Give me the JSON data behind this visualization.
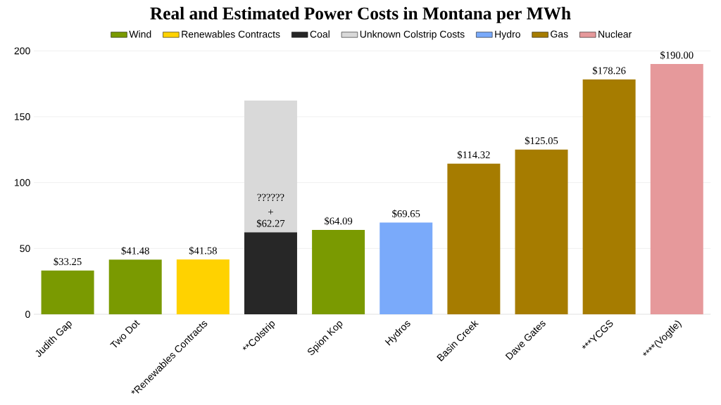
{
  "chart_data": {
    "type": "bar",
    "stacked": true,
    "title": "Real and Estimated Power Costs in Montana per MWh",
    "categories": [
      "Judith Gap",
      "Two Dot",
      "*Renewables Contracts",
      "**Colstrip",
      "Spion Kop",
      "Hydros",
      "Basin Creek",
      "Dave Gates",
      "***YCGS",
      "****(Vogtle)"
    ],
    "series": [
      {
        "name": "Wind",
        "color": "#7a9a01",
        "values": [
          33.25,
          41.48,
          null,
          null,
          64.09,
          null,
          null,
          null,
          null,
          null
        ],
        "value_labels": [
          "$33.25",
          "$41.48",
          null,
          null,
          "$64.09",
          null,
          null,
          null,
          null,
          null
        ]
      },
      {
        "name": "Renewables Contracts",
        "color": "#ffd200",
        "values": [
          null,
          null,
          41.58,
          null,
          null,
          null,
          null,
          null,
          null,
          null
        ],
        "value_labels": [
          null,
          null,
          "$41.58",
          null,
          null,
          null,
          null,
          null,
          null,
          null
        ]
      },
      {
        "name": "Coal",
        "color": "#272727",
        "values": [
          null,
          null,
          null,
          62.27,
          null,
          null,
          null,
          null,
          null,
          null
        ],
        "value_labels": [
          null,
          null,
          null,
          "$62.27",
          null,
          null,
          null,
          null,
          null,
          null
        ]
      },
      {
        "name": "Unknown Colstrip Costs",
        "color": "#d9d9d9",
        "values": [
          null,
          null,
          null,
          100,
          null,
          null,
          null,
          null,
          null,
          null
        ]
      },
      {
        "name": "Hydro",
        "color": "#7aaafa",
        "values": [
          null,
          null,
          null,
          null,
          null,
          69.65,
          null,
          null,
          null,
          null
        ],
        "value_labels": [
          null,
          null,
          null,
          null,
          null,
          "$69.65",
          null,
          null,
          null,
          null
        ]
      },
      {
        "name": "Gas",
        "color": "#a67c00",
        "values": [
          null,
          null,
          null,
          null,
          null,
          null,
          114.32,
          125.05,
          178.26,
          null
        ],
        "value_labels": [
          null,
          null,
          null,
          null,
          null,
          null,
          "$114.32",
          "$125.05",
          "$178.26",
          null
        ]
      },
      {
        "name": "Nuclear",
        "color": "#e6999b",
        "values": [
          null,
          null,
          null,
          null,
          null,
          null,
          null,
          null,
          null,
          190.0
        ],
        "value_labels": [
          null,
          null,
          null,
          null,
          null,
          null,
          null,
          null,
          null,
          "$190.00"
        ]
      }
    ],
    "annotations": [
      "??????",
      "+"
    ],
    "ylim": [
      0,
      200
    ],
    "yticks": [
      0,
      50,
      100,
      150,
      200
    ],
    "grid": "y",
    "legend": "top"
  }
}
